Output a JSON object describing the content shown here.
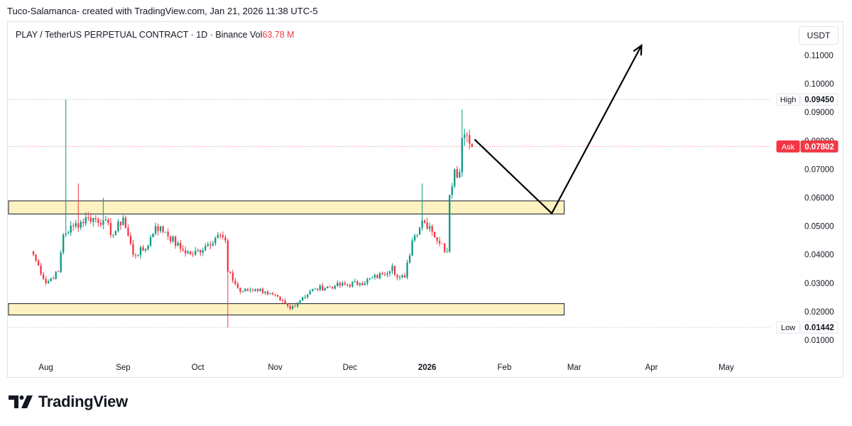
{
  "caption": "Tuco-Salamanca- created with TradingView.com, Jan 21, 2026 11:38 UTC-5",
  "header": {
    "symbol_text": "PLAY / TetherUS PERPETUAL CONTRACT · 1D · Binance",
    "vol_label": "Vol",
    "vol_value": "63.78 M"
  },
  "currency_button": "USDT",
  "footer": {
    "brand": "TradingView"
  },
  "colors": {
    "up": "#089981",
    "down": "#f23645",
    "zone_fill": "#fff2c2",
    "zone_stroke": "#131722",
    "grid_dotted": "#b2b5be",
    "text": "#131722",
    "axis_text": "#131722"
  },
  "chart_data": {
    "type": "candlestick",
    "y_axis": {
      "scale": "linear",
      "range": [
        0.0055,
        0.117
      ],
      "ticks": [
        0.11,
        0.1,
        0.09,
        0.08,
        0.07,
        0.06,
        0.05,
        0.04,
        0.03,
        0.02,
        0.01
      ],
      "tick_labels": [
        "0.11000",
        "0.10000",
        "0.09000",
        "0.08000",
        "0.07000",
        "0.06000",
        "0.05000",
        "0.04000",
        "0.03000",
        "0.02000",
        "0.01000"
      ]
    },
    "x_axis": {
      "range": [
        "2025-07-17",
        "2026-05-19"
      ],
      "ticks": [
        {
          "date": "2025-08-01",
          "label": "Aug",
          "bold": false
        },
        {
          "date": "2025-09-01",
          "label": "Sep",
          "bold": false
        },
        {
          "date": "2025-10-01",
          "label": "Oct",
          "bold": false
        },
        {
          "date": "2025-11-01",
          "label": "Nov",
          "bold": false
        },
        {
          "date": "2025-12-01",
          "label": "Dec",
          "bold": false
        },
        {
          "date": "2026-01-01",
          "label": "2026",
          "bold": true
        },
        {
          "date": "2026-02-01",
          "label": "Feb",
          "bold": false
        },
        {
          "date": "2026-03-01",
          "label": "Mar",
          "bold": false
        },
        {
          "date": "2026-04-01",
          "label": "Apr",
          "bold": false
        },
        {
          "date": "2026-05-01",
          "label": "May",
          "bold": false
        }
      ]
    },
    "price_labels": [
      {
        "name": "High",
        "value": 0.0945,
        "text": "0.09450",
        "style": "neutral"
      },
      {
        "name": "Ask",
        "value": 0.07802,
        "text": "0.07802",
        "style": "down"
      },
      {
        "name": "Low",
        "value": 0.01442,
        "text": "0.01442",
        "style": "neutral"
      }
    ],
    "zones": [
      {
        "from": "2025-07-17",
        "to": "2026-02-25",
        "low": 0.0543,
        "high": 0.0589
      },
      {
        "from": "2025-07-17",
        "to": "2026-02-25",
        "low": 0.0188,
        "high": 0.0228
      }
    ],
    "projection": [
      {
        "date": "2026-01-20",
        "price": 0.0805
      },
      {
        "date": "2026-02-20",
        "price": 0.0545
      },
      {
        "date": "2026-03-28",
        "price": 0.1135
      }
    ],
    "anchors": [
      {
        "date": "2025-07-27",
        "price": 0.04
      },
      {
        "date": "2025-08-01",
        "price": 0.03
      },
      {
        "date": "2025-08-06",
        "price": 0.034
      },
      {
        "date": "2025-08-08",
        "price": 0.047
      },
      {
        "date": "2025-08-12",
        "price": 0.05
      },
      {
        "date": "2025-08-18",
        "price": 0.053
      },
      {
        "date": "2025-08-24",
        "price": 0.052
      },
      {
        "date": "2025-08-28",
        "price": 0.047
      },
      {
        "date": "2025-09-01",
        "price": 0.053
      },
      {
        "date": "2025-09-05",
        "price": 0.04
      },
      {
        "date": "2025-09-10",
        "price": 0.042
      },
      {
        "date": "2025-09-14",
        "price": 0.05
      },
      {
        "date": "2025-09-18",
        "price": 0.048
      },
      {
        "date": "2025-09-24",
        "price": 0.042
      },
      {
        "date": "2025-09-29",
        "price": 0.04
      },
      {
        "date": "2025-10-04",
        "price": 0.043
      },
      {
        "date": "2025-10-09",
        "price": 0.047
      },
      {
        "date": "2025-10-12",
        "price": 0.045
      },
      {
        "date": "2025-10-13",
        "price": 0.034
      },
      {
        "date": "2025-10-18",
        "price": 0.027
      },
      {
        "date": "2025-10-24",
        "price": 0.028
      },
      {
        "date": "2025-10-28",
        "price": 0.027
      },
      {
        "date": "2025-11-03",
        "price": 0.024
      },
      {
        "date": "2025-11-07",
        "price": 0.021
      },
      {
        "date": "2025-11-12",
        "price": 0.025
      },
      {
        "date": "2025-11-17",
        "price": 0.028
      },
      {
        "date": "2025-11-25",
        "price": 0.029
      },
      {
        "date": "2025-12-05",
        "price": 0.03
      },
      {
        "date": "2025-12-14",
        "price": 0.033
      },
      {
        "date": "2025-12-18",
        "price": 0.036
      },
      {
        "date": "2025-12-20",
        "price": 0.032
      },
      {
        "date": "2025-12-23",
        "price": 0.032
      },
      {
        "date": "2025-12-26",
        "price": 0.045
      },
      {
        "date": "2025-12-30",
        "price": 0.052
      },
      {
        "date": "2026-01-02",
        "price": 0.05
      },
      {
        "date": "2026-01-06",
        "price": 0.044
      },
      {
        "date": "2026-01-09",
        "price": 0.041
      },
      {
        "date": "2026-01-10",
        "price": 0.061
      },
      {
        "date": "2026-01-12",
        "price": 0.07
      },
      {
        "date": "2026-01-14",
        "price": 0.069
      },
      {
        "date": "2026-01-15",
        "price": 0.081
      },
      {
        "date": "2026-01-17",
        "price": 0.082
      },
      {
        "date": "2026-01-18",
        "price": 0.079
      },
      {
        "date": "2026-01-19",
        "price": 0.078
      }
    ],
    "wick_events": [
      {
        "date": "2025-08-09",
        "high": 0.0945
      },
      {
        "date": "2025-08-14",
        "high": 0.065
      },
      {
        "date": "2025-08-24",
        "high": 0.06
      },
      {
        "date": "2025-10-13",
        "low": 0.01442
      },
      {
        "date": "2025-12-30",
        "high": 0.065
      },
      {
        "date": "2026-01-15",
        "high": 0.091
      }
    ]
  }
}
